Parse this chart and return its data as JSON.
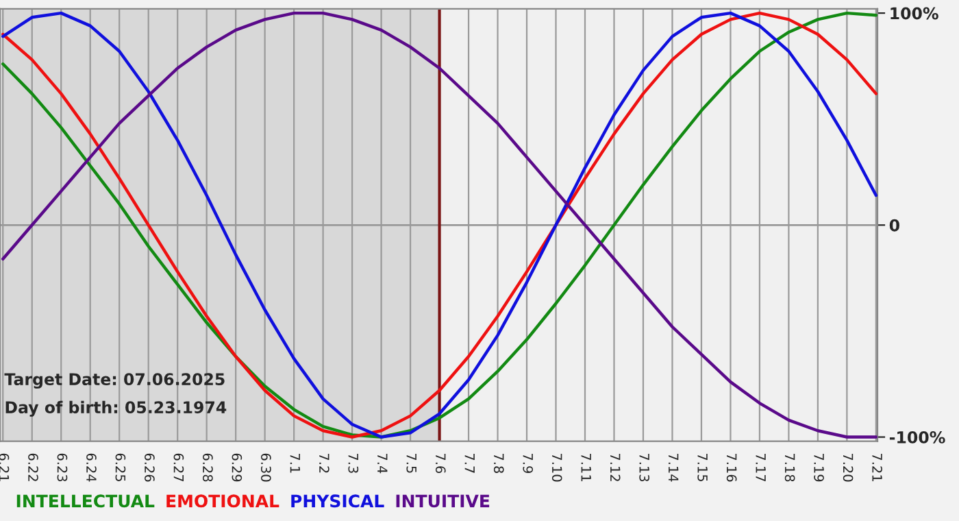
{
  "chart_data": {
    "type": "line",
    "categories": [
      "6.21",
      "6.22",
      "6.23",
      "6.24",
      "6.25",
      "6.26",
      "6.27",
      "6.28",
      "6.29",
      "6.30",
      "7.1",
      "7.2",
      "7.3",
      "7.4",
      "7.5",
      "7.6",
      "7.7",
      "7.8",
      "7.9",
      "7.10",
      "7.11",
      "7.12",
      "7.13",
      "7.14",
      "7.15",
      "7.16",
      "7.17",
      "7.18",
      "7.19",
      "7.20",
      "7.21"
    ],
    "series": [
      {
        "name": "INTELLECTUAL",
        "color": "#138a13",
        "values": [
          76,
          62,
          46,
          28,
          10,
          -10,
          -28,
          -46,
          -62,
          -76,
          -87,
          -95,
          -99,
          -100,
          -97,
          -91,
          -82,
          -69,
          -54,
          -37,
          -19,
          0,
          19,
          37,
          54,
          69,
          82,
          91,
          97,
          100,
          99
        ]
      },
      {
        "name": "EMOTIONAL",
        "color": "#ee1111",
        "values": [
          90,
          78,
          62,
          43,
          22,
          0,
          -22,
          -43,
          -62,
          -78,
          -90,
          -97,
          -100,
          -97,
          -90,
          -78,
          -62,
          -43,
          -22,
          0,
          22,
          43,
          62,
          78,
          90,
          97,
          100,
          97,
          90,
          78,
          62
        ]
      },
      {
        "name": "PHYSICAL",
        "color": "#1010dd",
        "values": [
          89,
          98,
          100,
          94,
          82,
          63,
          40,
          14,
          -14,
          -40,
          -63,
          -82,
          -94,
          -100,
          -98,
          -89,
          -73,
          -52,
          -27,
          0,
          27,
          52,
          73,
          89,
          98,
          100,
          94,
          82,
          63,
          40,
          14
        ]
      },
      {
        "name": "INTUITIVE",
        "color": "#5a0a8a",
        "values": [
          -16,
          0,
          16,
          32,
          48,
          61,
          74,
          84,
          92,
          97,
          100,
          100,
          97,
          92,
          84,
          74,
          61,
          48,
          32,
          16,
          0,
          -16,
          -32,
          -48,
          -61,
          -74,
          -84,
          -92,
          -97,
          -100,
          -100
        ]
      }
    ],
    "ylim": [
      -102,
      102
    ],
    "yticks": [
      {
        "value": 100,
        "label": "100%"
      },
      0,
      {
        "value": -100,
        "label": "-100%"
      }
    ],
    "ref_lines": [
      {
        "axis": "x",
        "value": "7.6",
        "color": "#7a1515"
      },
      {
        "axis": "y",
        "value": 0,
        "color": "#999999"
      }
    ],
    "bands": [
      {
        "axis": "x",
        "from": "6.21",
        "to": "7.6",
        "color": "#d8d8d8"
      }
    ],
    "annotations": [
      "Target Date: 07.06.2025",
      "Day of birth: 05.23.1974"
    ],
    "grid": "x",
    "legend": "bottom",
    "marker": "none",
    "line_style": "solid"
  }
}
